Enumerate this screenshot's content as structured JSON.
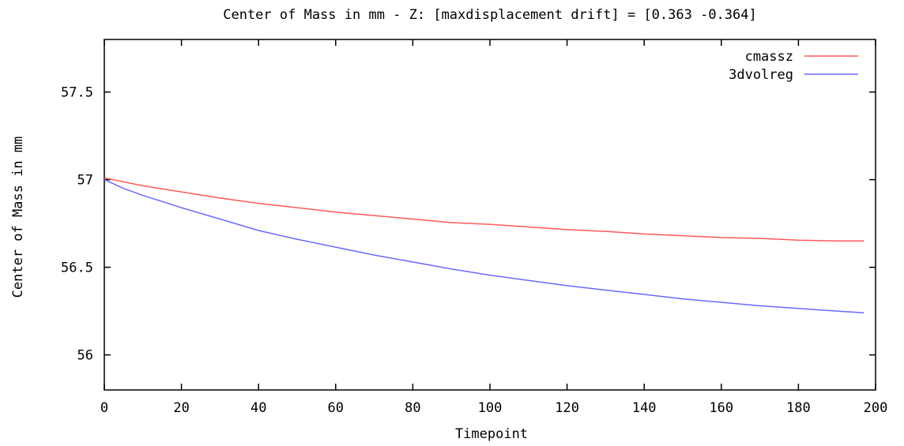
{
  "chart_data": {
    "type": "line",
    "title": "Center of Mass in mm - Z: [maxdisplacement drift] = [0.363 -0.364]",
    "xlabel": "Timepoint",
    "ylabel": "Center of Mass in mm",
    "xlim": [
      0,
      200
    ],
    "ylim": [
      55.8,
      57.8
    ],
    "xticks": [
      0,
      20,
      40,
      60,
      80,
      100,
      120,
      140,
      160,
      180,
      200
    ],
    "yticks": [
      56,
      56.5,
      57,
      57.5
    ],
    "ytick_labels": [
      "56",
      "56.5",
      "57",
      "57.5"
    ],
    "grid": false,
    "legend_position": "top-right",
    "series": [
      {
        "name": "cmassz",
        "color": "#ff5a5a",
        "x": [
          0,
          10,
          20,
          30,
          40,
          50,
          60,
          70,
          80,
          90,
          100,
          110,
          120,
          130,
          140,
          150,
          160,
          170,
          180,
          190,
          197
        ],
        "values": [
          57.01,
          56.965,
          56.93,
          56.895,
          56.865,
          56.84,
          56.815,
          56.795,
          56.775,
          56.755,
          56.745,
          56.73,
          56.715,
          56.705,
          56.69,
          56.68,
          56.67,
          56.665,
          56.655,
          56.65,
          56.65
        ]
      },
      {
        "name": "3dvolreg",
        "color": "#6a6aff",
        "x": [
          0,
          5,
          10,
          15,
          20,
          30,
          40,
          50,
          60,
          70,
          80,
          90,
          100,
          110,
          120,
          130,
          140,
          150,
          160,
          170,
          180,
          190,
          197
        ],
        "values": [
          57.0,
          56.95,
          56.91,
          56.875,
          56.84,
          56.775,
          56.71,
          56.66,
          56.615,
          56.57,
          56.53,
          56.49,
          56.455,
          56.425,
          56.395,
          56.37,
          56.345,
          56.32,
          56.3,
          56.28,
          56.265,
          56.25,
          56.24
        ]
      }
    ]
  }
}
